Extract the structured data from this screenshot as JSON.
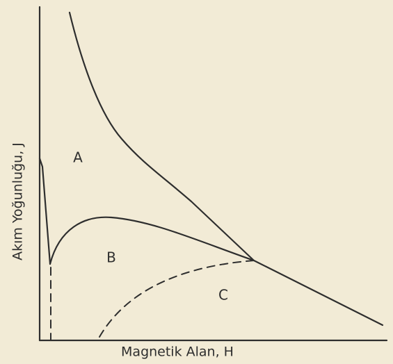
{
  "axes": {
    "x_label": "Magnetik Alan, H",
    "y_label": "Akım Yoğunluğu, J"
  },
  "regions": [
    {
      "label": "A"
    },
    {
      "label": "B"
    },
    {
      "label": "C"
    }
  ]
}
